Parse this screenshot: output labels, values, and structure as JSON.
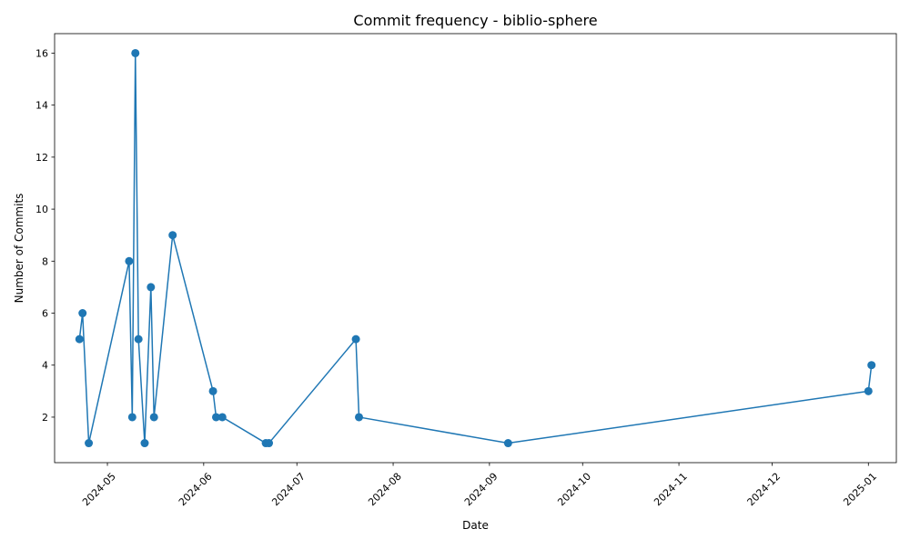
{
  "chart_data": {
    "type": "line",
    "title": "Commit frequency - biblio-sphere",
    "xlabel": "Date",
    "ylabel": "Number of Commits",
    "x_range": [
      "2024-04-14",
      "2025-01-10"
    ],
    "ylim": [
      0.25,
      16.75
    ],
    "grid": false,
    "legend": "none",
    "color": "#1f77b4",
    "x_ticks": [
      "2024-05",
      "2024-06",
      "2024-07",
      "2024-08",
      "2024-09",
      "2024-10",
      "2024-11",
      "2024-12",
      "2025-01"
    ],
    "y_ticks": [
      2,
      4,
      6,
      8,
      10,
      12,
      14,
      16
    ],
    "series": [
      {
        "points": [
          {
            "x": "2024-04-22",
            "y": 5
          },
          {
            "x": "2024-04-23",
            "y": 6
          },
          {
            "x": "2024-04-25",
            "y": 1
          },
          {
            "x": "2024-05-08",
            "y": 8
          },
          {
            "x": "2024-05-09",
            "y": 2
          },
          {
            "x": "2024-05-10",
            "y": 16
          },
          {
            "x": "2024-05-11",
            "y": 5
          },
          {
            "x": "2024-05-13",
            "y": 1
          },
          {
            "x": "2024-05-15",
            "y": 7
          },
          {
            "x": "2024-05-16",
            "y": 2
          },
          {
            "x": "2024-05-22",
            "y": 9
          },
          {
            "x": "2024-06-04",
            "y": 3
          },
          {
            "x": "2024-06-05",
            "y": 2
          },
          {
            "x": "2024-06-07",
            "y": 2
          },
          {
            "x": "2024-06-21",
            "y": 1
          },
          {
            "x": "2024-06-22",
            "y": 1
          },
          {
            "x": "2024-07-20",
            "y": 5
          },
          {
            "x": "2024-07-21",
            "y": 2
          },
          {
            "x": "2024-09-07",
            "y": 1
          },
          {
            "x": "2025-01-01",
            "y": 3
          },
          {
            "x": "2025-01-02",
            "y": 4
          }
        ]
      }
    ]
  }
}
